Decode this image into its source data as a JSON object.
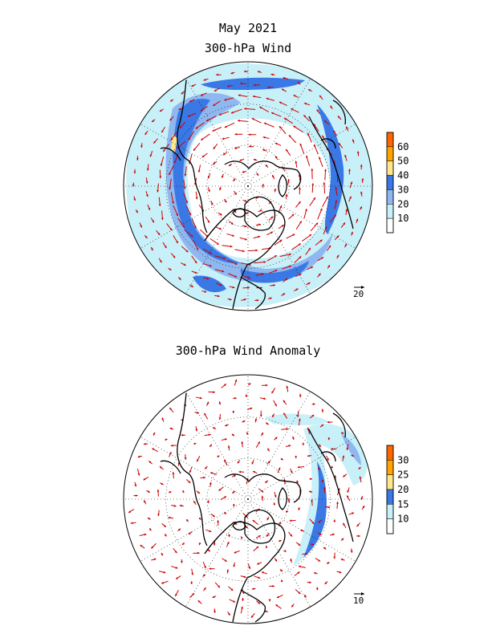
{
  "header": {
    "month": "May 2021"
  },
  "panels": [
    {
      "title": "300-hPa Wind",
      "colorbar": {
        "labels": [
          "60",
          "50",
          "40",
          "30",
          "20",
          "10"
        ],
        "colors": [
          "#ff6600",
          "#ffa400",
          "#ffe88c",
          "#3a78e6",
          "#8fb8f0",
          "#c8f0f8",
          "#ffffff"
        ]
      },
      "reference_vector": "20"
    },
    {
      "title": "300-hPa Wind Anomaly",
      "colorbar": {
        "labels": [
          "30",
          "25",
          "20",
          "15",
          "10"
        ],
        "colors": [
          "#ff6600",
          "#ffa400",
          "#ffe88c",
          "#3a78e6",
          "#c8f0f8",
          "#ffffff"
        ]
      },
      "reference_vector": "10"
    }
  ],
  "style": {
    "arrow_color": "#cc0000",
    "coast_color": "#000000"
  }
}
